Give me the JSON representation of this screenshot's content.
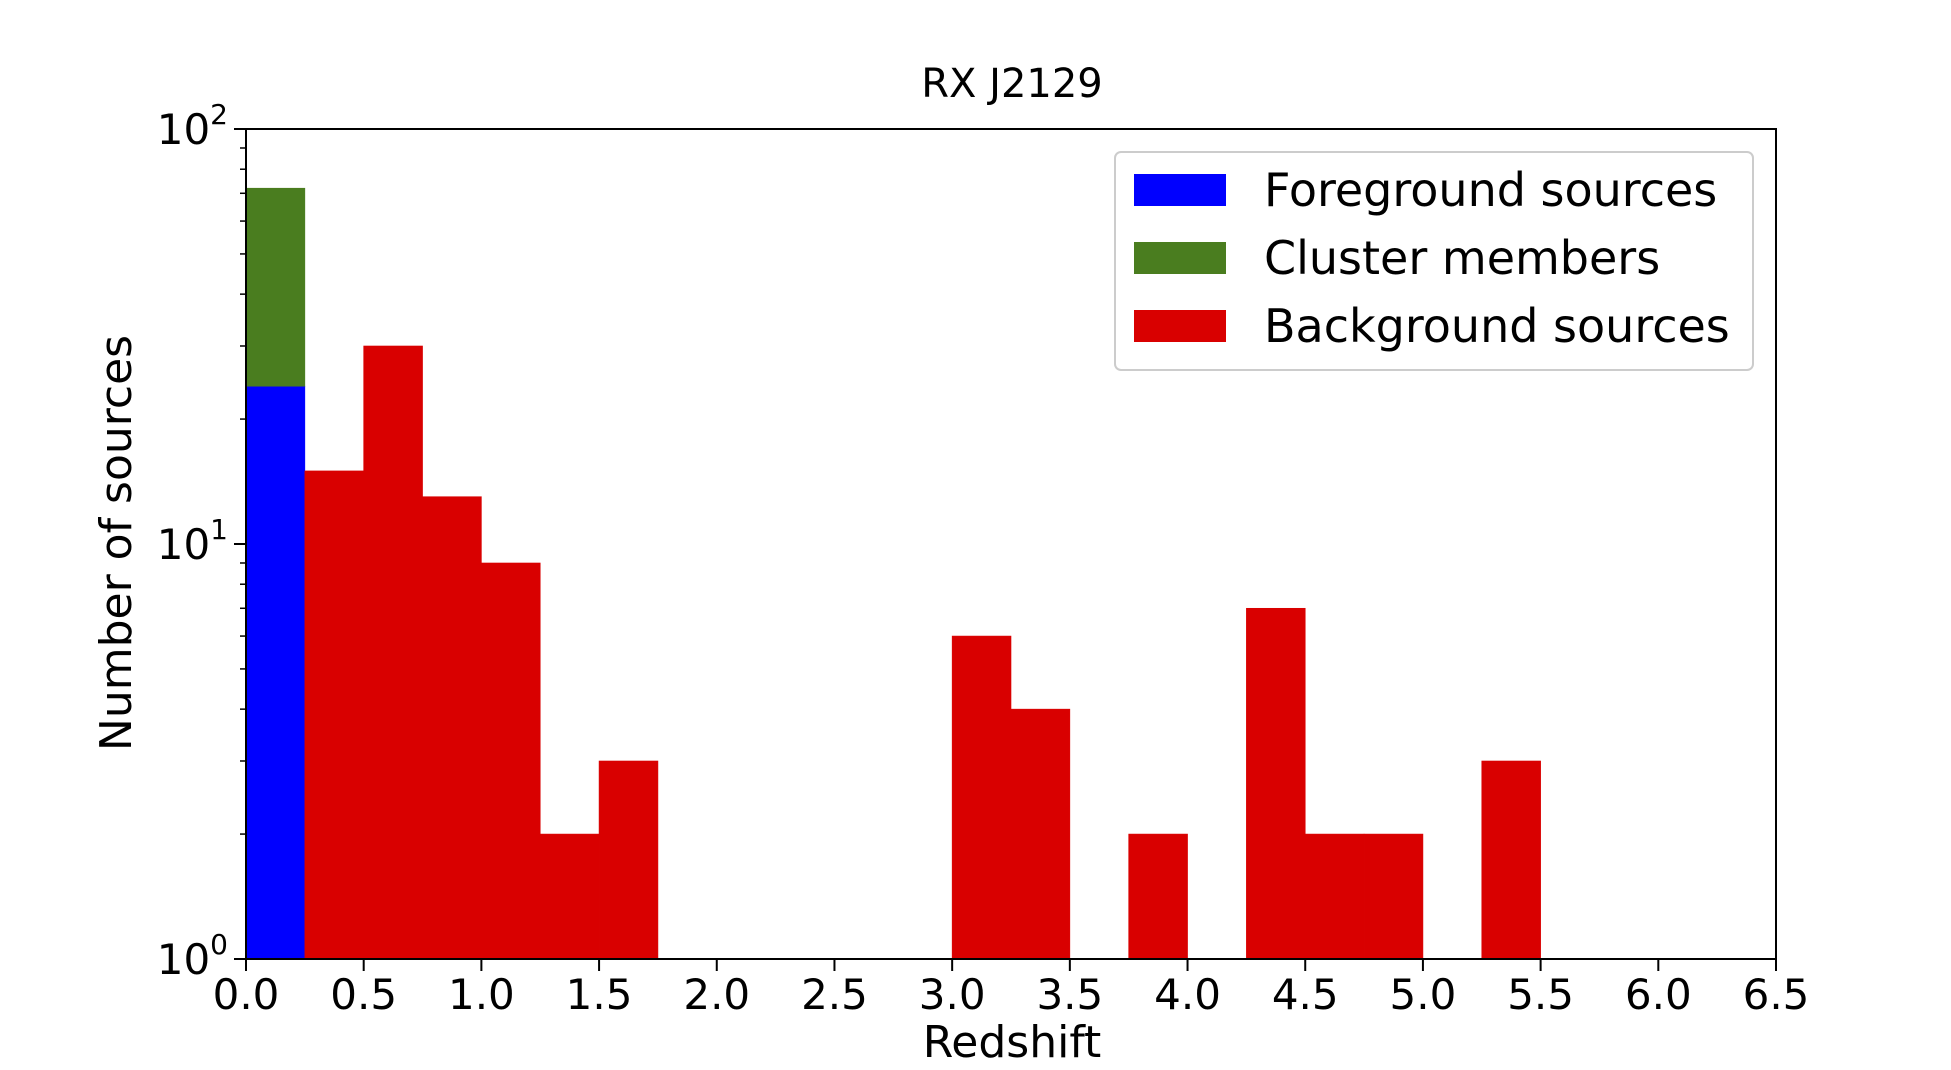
{
  "chart_data": {
    "type": "bar",
    "title": "RX J2129",
    "xlabel": "Redshift",
    "ylabel": "Number of sources",
    "xlim": [
      0.0,
      6.5
    ],
    "ylim": [
      1,
      100
    ],
    "yscale": "log",
    "bin_width": 0.25,
    "x_ticks": [
      "0.0",
      "0.5",
      "1.0",
      "1.5",
      "2.0",
      "2.5",
      "3.0",
      "3.5",
      "4.0",
      "4.5",
      "5.0",
      "5.5",
      "6.0",
      "6.5"
    ],
    "y_ticks": [
      {
        "value": 1,
        "base": "10",
        "exp": "0"
      },
      {
        "value": 10,
        "base": "10",
        "exp": "1"
      },
      {
        "value": 100,
        "base": "10",
        "exp": "2"
      }
    ],
    "legend_position": "top-right",
    "series": [
      {
        "name": "Foreground sources",
        "color": "#0000ff",
        "bins": [
          {
            "x0": 0.0,
            "x1": 0.25,
            "bottom": 1,
            "top": 24
          }
        ]
      },
      {
        "name": "Cluster members",
        "color": "#4a7d1f",
        "bins": [
          {
            "x0": 0.0,
            "x1": 0.25,
            "bottom": 24,
            "top": 72
          }
        ]
      },
      {
        "name": "Background sources",
        "color": "#d90000",
        "bins": [
          {
            "x0": 0.25,
            "x1": 0.5,
            "bottom": 1,
            "top": 15
          },
          {
            "x0": 0.5,
            "x1": 0.75,
            "bottom": 1,
            "top": 30
          },
          {
            "x0": 0.75,
            "x1": 1.0,
            "bottom": 1,
            "top": 13
          },
          {
            "x0": 1.0,
            "x1": 1.25,
            "bottom": 1,
            "top": 9
          },
          {
            "x0": 1.25,
            "x1": 1.5,
            "bottom": 1,
            "top": 2
          },
          {
            "x0": 1.5,
            "x1": 1.75,
            "bottom": 1,
            "top": 3
          },
          {
            "x0": 3.0,
            "x1": 3.25,
            "bottom": 1,
            "top": 6
          },
          {
            "x0": 3.25,
            "x1": 3.5,
            "bottom": 1,
            "top": 4
          },
          {
            "x0": 3.75,
            "x1": 4.0,
            "bottom": 1,
            "top": 2
          },
          {
            "x0": 4.25,
            "x1": 4.5,
            "bottom": 1,
            "top": 7
          },
          {
            "x0": 4.5,
            "x1": 4.75,
            "bottom": 1,
            "top": 2
          },
          {
            "x0": 4.75,
            "x1": 5.0,
            "bottom": 1,
            "top": 2
          },
          {
            "x0": 5.25,
            "x1": 5.5,
            "bottom": 1,
            "top": 3
          }
        ]
      }
    ]
  }
}
